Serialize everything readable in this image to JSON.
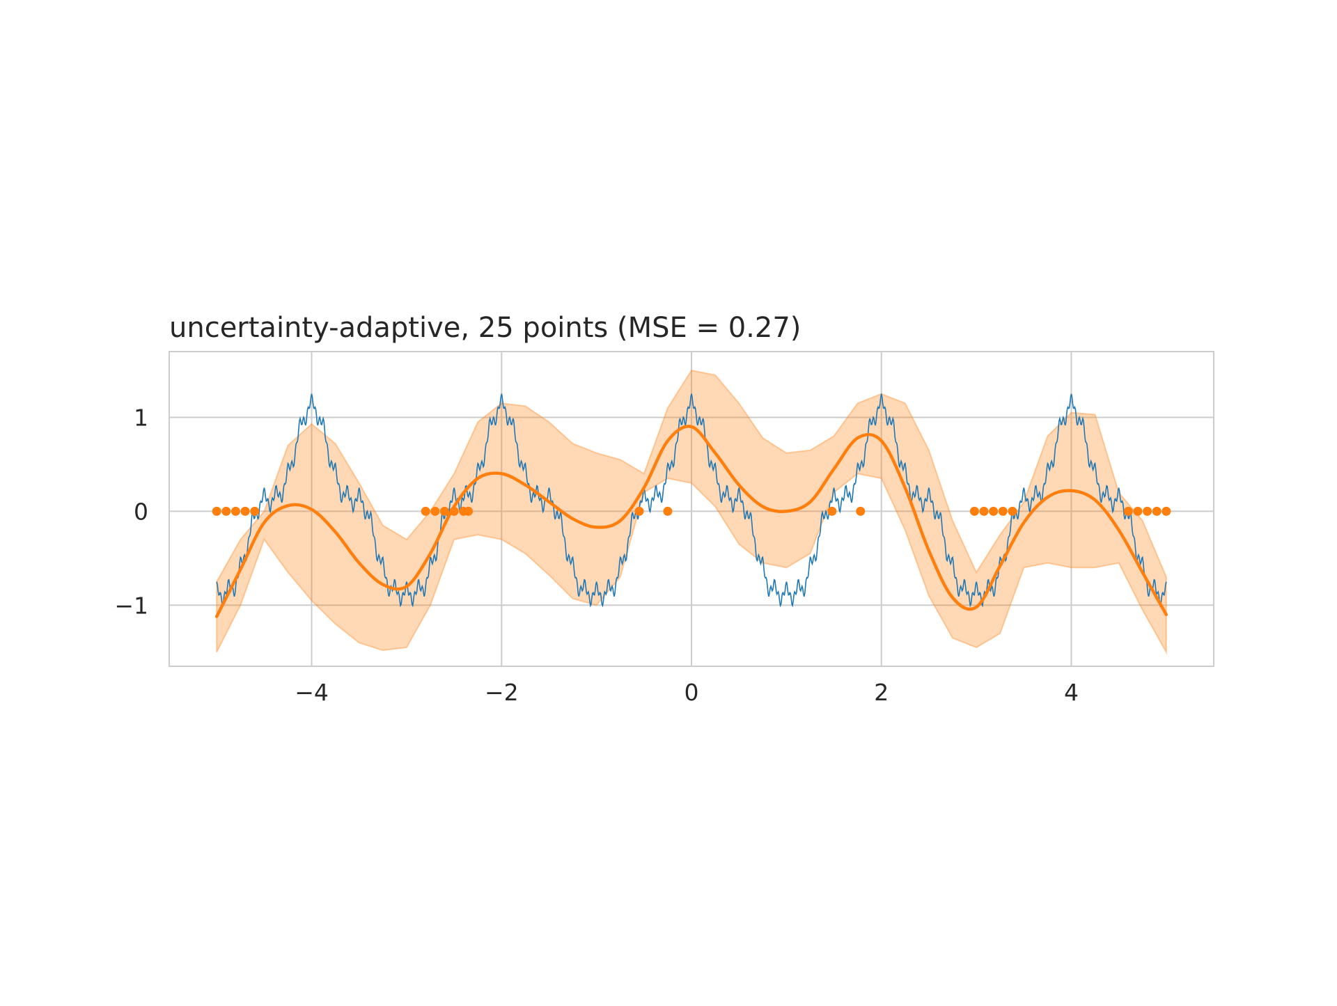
{
  "chart_data": {
    "type": "line",
    "title": "uncertainty-adaptive, 25 points (MSE = 0.27)",
    "xlabel": "",
    "ylabel": "",
    "xlim": [
      -5.5,
      5.5
    ],
    "ylim": [
      -1.65,
      1.7
    ],
    "x_ticks": [
      -4,
      -2,
      0,
      2,
      4
    ],
    "y_ticks": [
      -1,
      0,
      1
    ],
    "x_tick_labels": [
      "−4",
      "−2",
      "0",
      "2",
      "4"
    ],
    "y_tick_labels": [
      "−1",
      "0",
      "1"
    ],
    "grid": true,
    "legend": "none",
    "colors": {
      "true_function": "#1f77b4",
      "gp_mean": "#ff7f0e",
      "band": "#ff7f0e",
      "samples": "#ff7f0e",
      "grid": "#cccccc",
      "spine": "#cccccc",
      "text": "#262626"
    },
    "series": [
      {
        "kind": "true_function",
        "x": [
          -5.0,
          -4.5,
          -4.0,
          -3.5,
          -3.0,
          -2.5,
          -2.0,
          -1.5,
          -1.0,
          -0.5,
          0.0,
          0.5,
          1.0,
          1.5,
          2.0,
          2.5,
          3.0,
          3.5,
          4.0,
          4.5,
          5.0
        ],
        "y": [
          -1.0,
          0.0,
          1.0,
          0.0,
          -1.0,
          0.0,
          1.0,
          0.0,
          -1.0,
          0.0,
          1.0,
          0.0,
          -1.0,
          0.0,
          1.0,
          0.0,
          -1.0,
          0.0,
          1.0,
          0.0,
          -1.0
        ]
      },
      {
        "kind": "gp_mean",
        "x": [
          -5.0,
          -4.75,
          -4.5,
          -4.25,
          -4.0,
          -3.75,
          -3.5,
          -3.25,
          -3.0,
          -2.75,
          -2.5,
          -2.25,
          -2.0,
          -1.75,
          -1.5,
          -1.25,
          -1.0,
          -0.75,
          -0.5,
          -0.25,
          0.0,
          0.25,
          0.5,
          0.75,
          1.0,
          1.25,
          1.5,
          1.75,
          2.0,
          2.25,
          2.5,
          2.75,
          3.0,
          3.25,
          3.5,
          3.75,
          4.0,
          4.25,
          4.5,
          4.75,
          5.0
        ],
        "y": [
          -1.12,
          -0.62,
          -0.12,
          0.06,
          0.02,
          -0.22,
          -0.55,
          -0.78,
          -0.8,
          -0.45,
          0.05,
          0.35,
          0.4,
          0.28,
          0.1,
          -0.08,
          -0.17,
          -0.1,
          0.25,
          0.75,
          0.9,
          0.62,
          0.28,
          0.05,
          0.0,
          0.1,
          0.45,
          0.78,
          0.75,
          0.25,
          -0.42,
          -0.92,
          -1.02,
          -0.58,
          -0.12,
          0.15,
          0.22,
          0.12,
          -0.2,
          -0.65,
          -1.1
        ]
      },
      {
        "kind": "band",
        "x": [
          -5.0,
          -4.75,
          -4.5,
          -4.25,
          -4.0,
          -3.75,
          -3.5,
          -3.25,
          -3.0,
          -2.75,
          -2.5,
          -2.25,
          -2.0,
          -1.75,
          -1.5,
          -1.25,
          -1.0,
          -0.75,
          -0.5,
          -0.25,
          0.0,
          0.25,
          0.5,
          0.75,
          1.0,
          1.25,
          1.5,
          1.75,
          2.0,
          2.25,
          2.5,
          2.75,
          3.0,
          3.25,
          3.5,
          3.75,
          4.0,
          4.25,
          4.5,
          4.75,
          5.0
        ],
        "lower": [
          -1.5,
          -1.0,
          -0.3,
          -0.65,
          -0.95,
          -1.2,
          -1.4,
          -1.48,
          -1.45,
          -1.0,
          -0.3,
          -0.25,
          -0.3,
          -0.45,
          -0.68,
          -0.93,
          -1.0,
          -0.7,
          0.2,
          0.35,
          0.3,
          0.05,
          -0.35,
          -0.55,
          -0.6,
          -0.45,
          0.2,
          0.4,
          0.35,
          -0.2,
          -0.9,
          -1.35,
          -1.45,
          -1.3,
          -0.6,
          -0.55,
          -0.6,
          -0.6,
          -0.55,
          -1.05,
          -1.5
        ],
        "upper": [
          -0.75,
          -0.3,
          0.0,
          0.7,
          0.93,
          0.72,
          0.3,
          -0.15,
          -0.3,
          0.0,
          0.4,
          0.95,
          1.15,
          1.12,
          0.95,
          0.72,
          0.62,
          0.55,
          0.4,
          1.1,
          1.5,
          1.45,
          1.15,
          0.78,
          0.62,
          0.65,
          0.8,
          1.15,
          1.25,
          1.15,
          0.65,
          -0.1,
          -0.65,
          -0.25,
          0.1,
          0.8,
          1.05,
          1.03,
          0.2,
          -0.1,
          -0.7
        ]
      }
    ],
    "samples": {
      "x": [
        -5.0,
        -4.9,
        -4.8,
        -4.7,
        -4.6,
        -2.8,
        -2.7,
        -2.6,
        -2.5,
        -2.4,
        -2.35,
        -0.55,
        -0.25,
        1.48,
        1.78,
        2.98,
        3.08,
        3.18,
        3.28,
        3.38,
        4.6,
        4.7,
        4.8,
        4.9,
        5.0
      ],
      "y": [
        0,
        0,
        0,
        0,
        0,
        0,
        0,
        0,
        0,
        0,
        0,
        0,
        0,
        0,
        0,
        0,
        0,
        0,
        0,
        0,
        0,
        0,
        0,
        0,
        0
      ]
    }
  }
}
